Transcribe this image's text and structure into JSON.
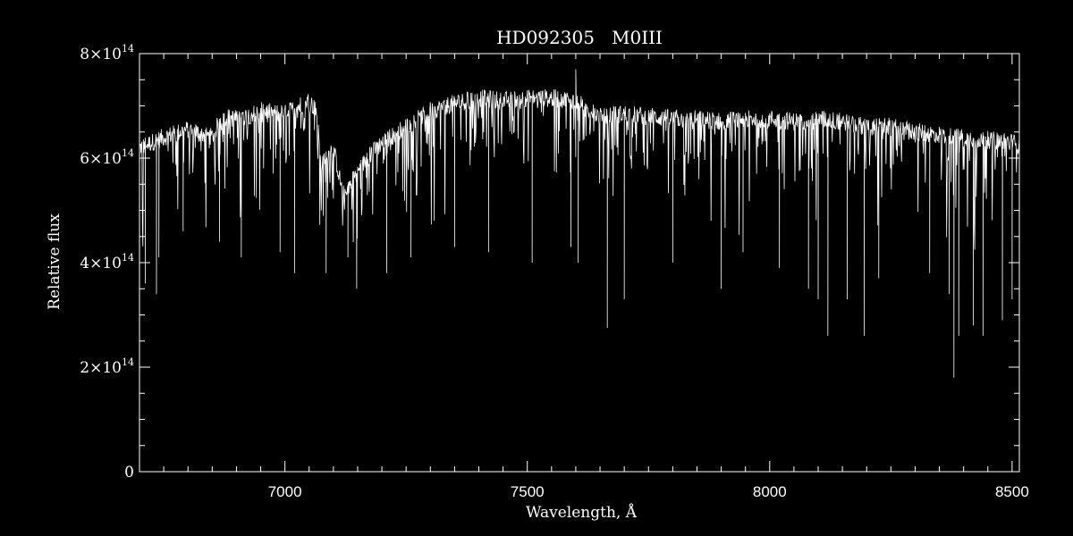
{
  "colors": {
    "background": "#000000",
    "foreground": "#ffffff"
  },
  "chart_data": {
    "type": "line",
    "title_star": "HD092305",
    "title_sptype": "M0III",
    "xlabel": "Wavelength, Å",
    "ylabel": "Relative flux",
    "xlim": [
      6700,
      8515
    ],
    "ylim": [
      0,
      800000000000000
    ],
    "x_ticks": [
      7000,
      7500,
      8000,
      8500
    ],
    "x_tick_labels": [
      "7000",
      "7500",
      "8000",
      "8500"
    ],
    "y_ticks": [
      0,
      200000000000000,
      400000000000000,
      600000000000000,
      800000000000000
    ],
    "y_tick_labels": [
      {
        "mantissa": "0",
        "exponent": ""
      },
      {
        "mantissa": "2×10",
        "exponent": "14"
      },
      {
        "mantissa": "4×10",
        "exponent": "14"
      },
      {
        "mantissa": "6×10",
        "exponent": "14"
      },
      {
        "mantissa": "8×10",
        "exponent": "14"
      }
    ],
    "x_minor_step": 50,
    "y_minor_step": 50000000000000,
    "grid": false,
    "continuum_unit": "×10^14",
    "series": [
      {
        "values_unit": "1e14",
        "continuum": [
          [
            6700,
            6.2
          ],
          [
            6750,
            6.4
          ],
          [
            6800,
            6.55
          ],
          [
            6850,
            6.4
          ],
          [
            6870,
            6.8
          ],
          [
            6900,
            6.75
          ],
          [
            6950,
            6.9
          ],
          [
            7000,
            6.85
          ],
          [
            7050,
            7.1
          ],
          [
            7065,
            6.9
          ],
          [
            7075,
            5.9
          ],
          [
            7100,
            6.2
          ],
          [
            7120,
            5.3
          ],
          [
            7140,
            5.6
          ],
          [
            7170,
            6.0
          ],
          [
            7200,
            6.3
          ],
          [
            7250,
            6.6
          ],
          [
            7300,
            6.9
          ],
          [
            7350,
            7.05
          ],
          [
            7400,
            7.15
          ],
          [
            7450,
            7.1
          ],
          [
            7500,
            7.15
          ],
          [
            7550,
            7.15
          ],
          [
            7600,
            7.1
          ],
          [
            7620,
            6.95
          ],
          [
            7650,
            6.8
          ],
          [
            7700,
            6.85
          ],
          [
            7750,
            6.8
          ],
          [
            7800,
            6.75
          ],
          [
            7850,
            6.75
          ],
          [
            7900,
            6.7
          ],
          [
            7950,
            6.75
          ],
          [
            8000,
            6.75
          ],
          [
            8050,
            6.7
          ],
          [
            8100,
            6.75
          ],
          [
            8150,
            6.7
          ],
          [
            8200,
            6.6
          ],
          [
            8250,
            6.6
          ],
          [
            8300,
            6.5
          ],
          [
            8350,
            6.45
          ],
          [
            8400,
            6.4
          ],
          [
            8450,
            6.35
          ],
          [
            8500,
            6.3
          ],
          [
            8515,
            6.25
          ]
        ],
        "deep_lines": [
          [
            6712,
            3.6
          ],
          [
            6735,
            3.4
          ],
          [
            6740,
            4.1
          ],
          [
            6790,
            4.6
          ],
          [
            6865,
            4.4
          ],
          [
            6910,
            4.1
          ],
          [
            6990,
            4.2
          ],
          [
            7020,
            3.8
          ],
          [
            7085,
            3.8
          ],
          [
            7130,
            4.1
          ],
          [
            7148,
            3.5
          ],
          [
            7210,
            3.8
          ],
          [
            7260,
            4.1
          ],
          [
            7350,
            4.3
          ],
          [
            7420,
            4.2
          ],
          [
            7510,
            4.0
          ],
          [
            7590,
            4.3
          ],
          [
            7605,
            4.0
          ],
          [
            7665,
            2.75
          ],
          [
            7700,
            3.3
          ],
          [
            7800,
            4.0
          ],
          [
            7900,
            3.5
          ],
          [
            7945,
            4.2
          ],
          [
            8020,
            3.9
          ],
          [
            8080,
            3.5
          ],
          [
            8100,
            3.3
          ],
          [
            8120,
            2.6
          ],
          [
            8160,
            3.3
          ],
          [
            8195,
            2.6
          ],
          [
            8225,
            3.7
          ],
          [
            8330,
            3.8
          ],
          [
            8370,
            3.4
          ],
          [
            8380,
            1.8
          ],
          [
            8390,
            2.6
          ],
          [
            8420,
            2.8
          ],
          [
            8440,
            2.6
          ],
          [
            8480,
            2.9
          ],
          [
            8500,
            3.3
          ]
        ],
        "spike": [
          7600,
          7.7
        ]
      }
    ]
  }
}
